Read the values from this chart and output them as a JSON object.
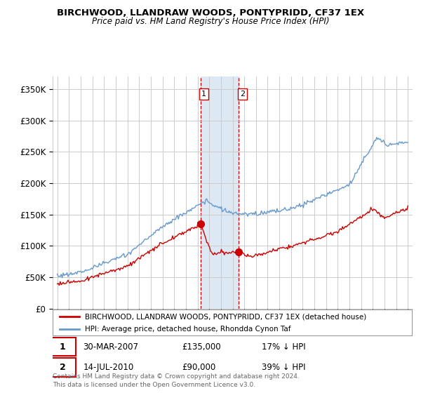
{
  "title": "BIRCHWOOD, LLANDRAW WOODS, PONTYPRIDD, CF37 1EX",
  "subtitle": "Price paid vs. HM Land Registry's House Price Index (HPI)",
  "ylim": [
    0,
    370000
  ],
  "yticks": [
    0,
    50000,
    100000,
    150000,
    200000,
    250000,
    300000,
    350000
  ],
  "ytick_labels": [
    "£0",
    "£50K",
    "£100K",
    "£150K",
    "£200K",
    "£250K",
    "£300K",
    "£350K"
  ],
  "legend_line1": "BIRCHWOOD, LLANDRAW WOODS, PONTYPRIDD, CF37 1EX (detached house)",
  "legend_line2": "HPI: Average price, detached house, Rhondda Cynon Taf",
  "transaction1_date": "30-MAR-2007",
  "transaction1_price": "£135,000",
  "transaction1_hpi": "17% ↓ HPI",
  "transaction2_date": "14-JUL-2010",
  "transaction2_price": "£90,000",
  "transaction2_hpi": "39% ↓ HPI",
  "footnote": "Contains HM Land Registry data © Crown copyright and database right 2024.\nThis data is licensed under the Open Government Licence v3.0.",
  "red_color": "#cc0000",
  "blue_color": "#6699cc",
  "highlight_color": "#dce9f5",
  "grid_color": "#cccccc",
  "t1_year": 2007.25,
  "t2_year": 2010.54,
  "t1_price": 135000,
  "t2_price": 90000
}
